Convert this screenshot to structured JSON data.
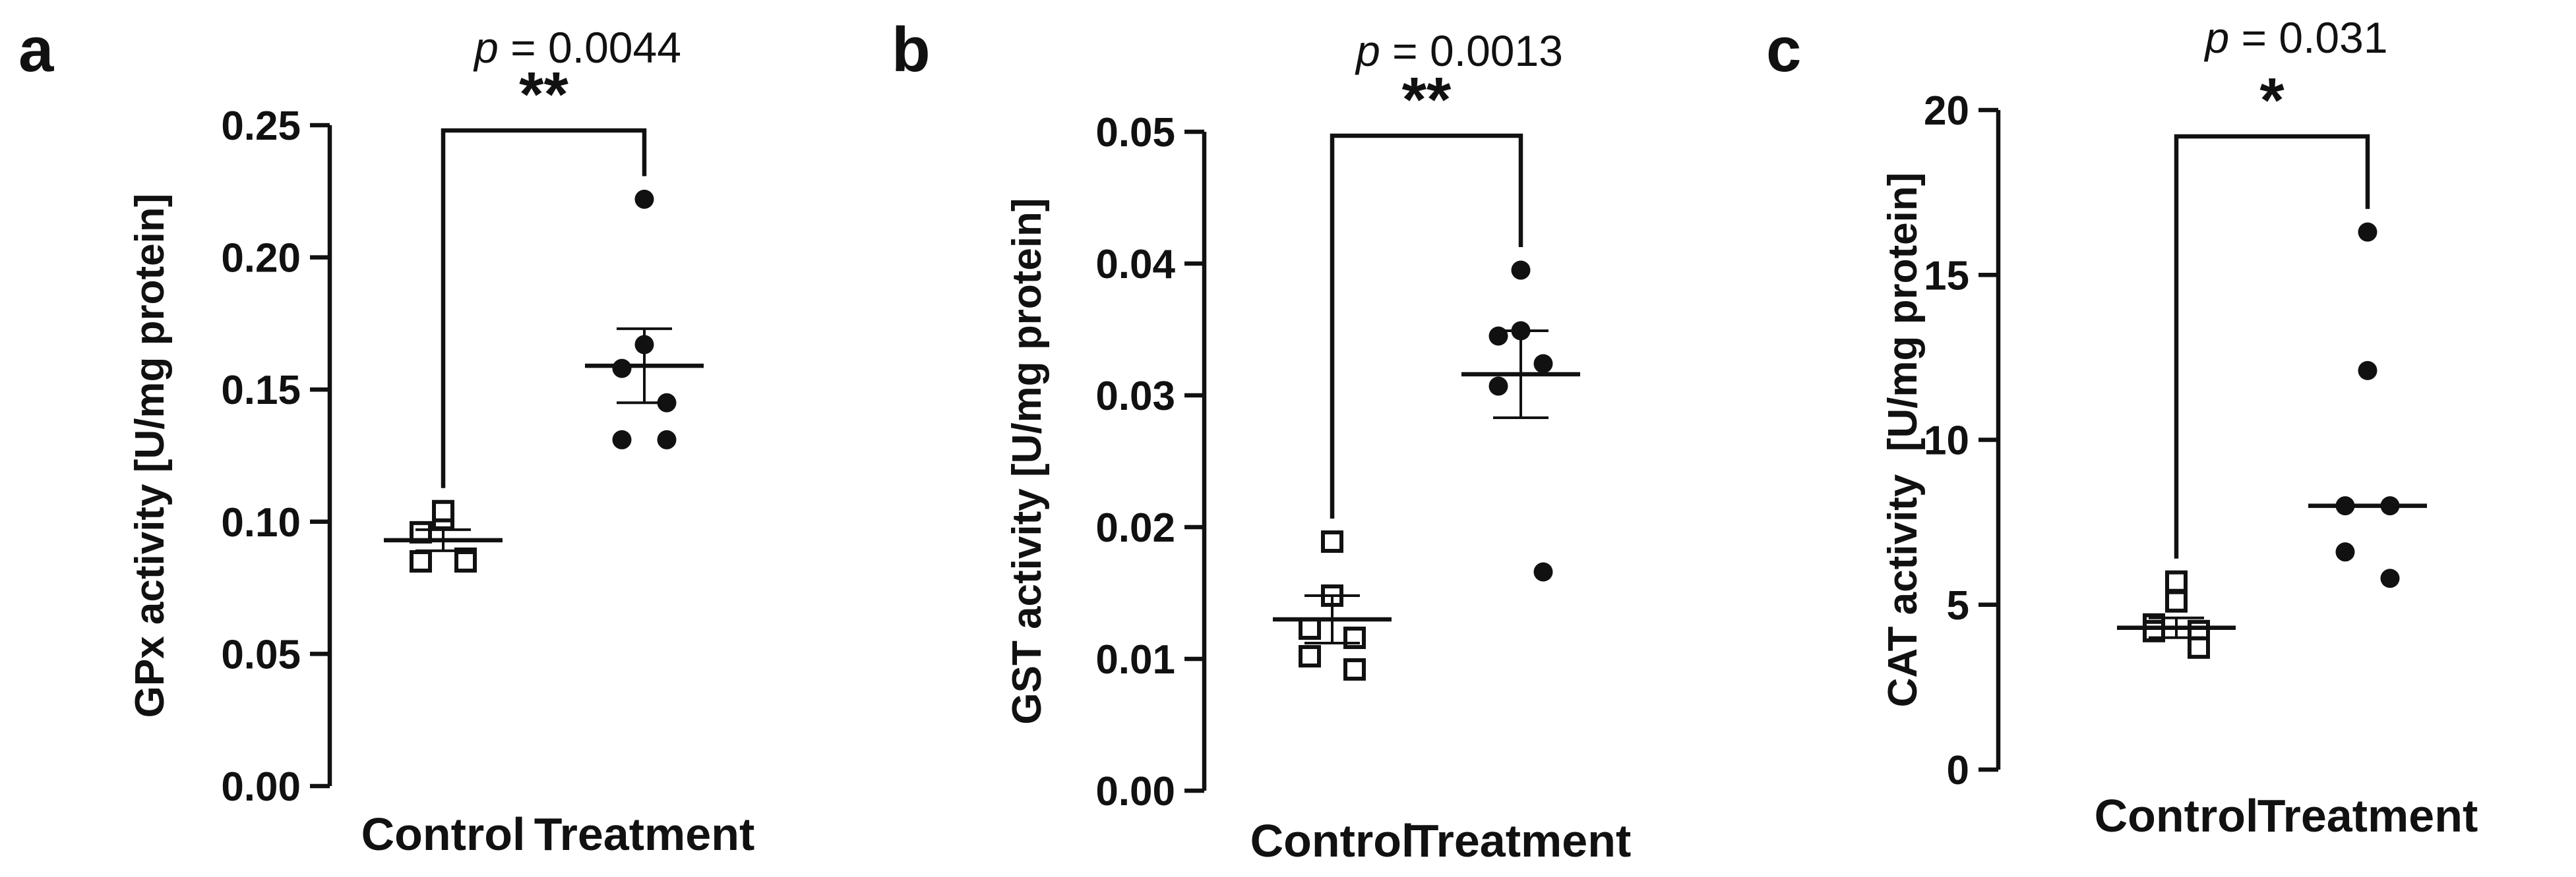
{
  "chart_data": [
    {
      "panel": "a",
      "type": "scatter",
      "ylabel": "GPx activity [U/mg protein]",
      "ylim": [
        0,
        0.25
      ],
      "yticks": [
        0.0,
        0.05,
        0.1,
        0.15,
        0.2,
        0.25
      ],
      "ytick_labels": [
        "0.00",
        "0.05",
        "0.10",
        "0.15",
        "0.20",
        "0.25"
      ],
      "categories": [
        "Control",
        "Treatment"
      ],
      "groups": [
        {
          "category": "Control",
          "marker": "open-square",
          "values": [
            0.101,
            0.104,
            0.096,
            0.086,
            0.085,
            0.085
          ],
          "center": 0.093,
          "error": [
            0.089,
            0.097
          ]
        },
        {
          "category": "Treatment",
          "marker": "filled-circle",
          "values": [
            0.222,
            0.167,
            0.158,
            0.145,
            0.131,
            0.131
          ],
          "center": 0.159,
          "error": [
            0.145,
            0.173
          ]
        }
      ],
      "p_value_label": "= 0.0044",
      "p_symbol": "p",
      "significance": "**",
      "bracket_y": 0.248
    },
    {
      "panel": "b",
      "type": "scatter",
      "ylabel": "GST activity [U/mg protein]",
      "ylim": [
        0,
        0.05
      ],
      "yticks": [
        0.0,
        0.01,
        0.02,
        0.03,
        0.04,
        0.05
      ],
      "ytick_labels": [
        "0.00",
        "0.01",
        "0.02",
        "0.03",
        "0.04",
        "0.05"
      ],
      "categories": [
        "Control",
        "Treatment"
      ],
      "groups": [
        {
          "category": "Control",
          "marker": "open-square",
          "values": [
            0.0189,
            0.0148,
            0.0123,
            0.0116,
            0.0102,
            0.0092
          ],
          "center": 0.013,
          "error": [
            0.0112,
            0.0148
          ]
        },
        {
          "category": "Treatment",
          "marker": "filled-circle",
          "values": [
            0.0395,
            0.0349,
            0.0345,
            0.0324,
            0.0307,
            0.0166
          ],
          "center": 0.0316,
          "error": [
            0.0283,
            0.0349
          ]
        }
      ],
      "p_value_label": "= 0.0013",
      "p_symbol": "p",
      "significance": "**",
      "bracket_y": 0.0497
    },
    {
      "panel": "c",
      "type": "scatter",
      "ylabel": "CAT activity  [U/mg protein]",
      "ylim": [
        0,
        20
      ],
      "yticks": [
        0,
        5,
        10,
        15,
        20
      ],
      "ytick_labels": [
        "0",
        "5",
        "10",
        "15",
        "20"
      ],
      "categories": [
        "Control",
        "Treatment"
      ],
      "groups": [
        {
          "category": "Control",
          "marker": "open-square",
          "values": [
            5.7,
            5.1,
            4.4,
            4.2,
            4.2,
            3.7
          ],
          "center": 4.3,
          "error": [
            4.0,
            4.6
          ]
        },
        {
          "category": "Treatment",
          "marker": "filled-circle",
          "values": [
            16.3,
            12.1,
            8.0,
            8.0,
            6.6,
            5.8
          ],
          "center": 8.0,
          "error": [
            8.0,
            8.0
          ]
        }
      ],
      "p_value_label": "= 0.031",
      "p_symbol": "p",
      "significance": "*",
      "bracket_y": 19.2
    }
  ]
}
